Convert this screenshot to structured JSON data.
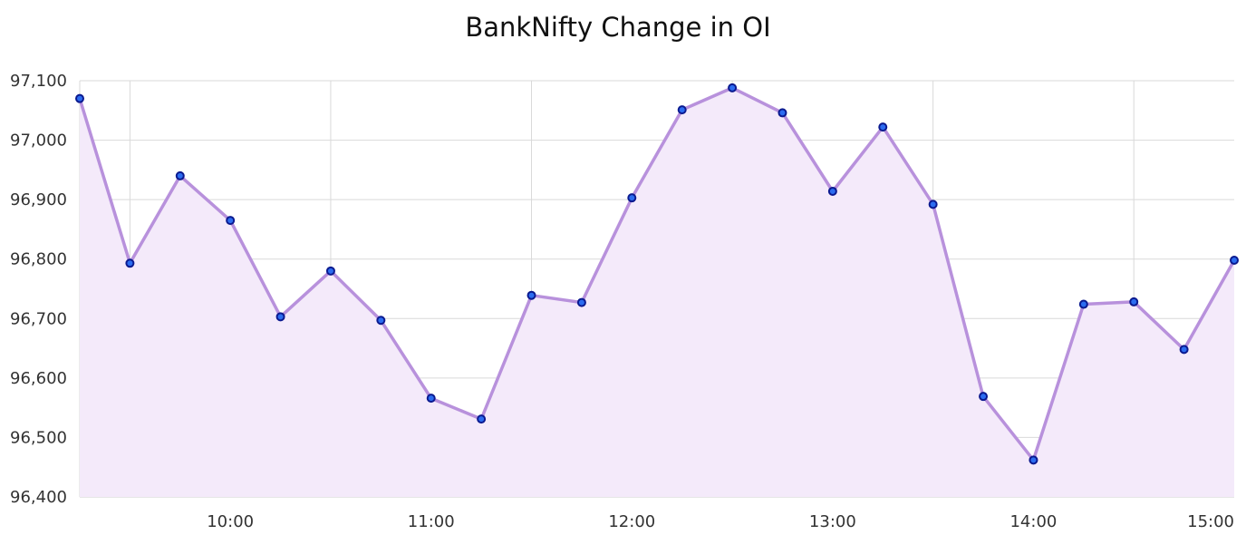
{
  "chart_data": {
    "type": "area",
    "title": "BankNifty Change in OI",
    "xlabel": "",
    "ylabel": "",
    "ylim": [
      96400,
      97100
    ],
    "xlim": [
      "09:15",
      "15:00"
    ],
    "yticks": [
      96400,
      96500,
      96600,
      96700,
      96800,
      96900,
      97000,
      97100
    ],
    "ytick_labels": [
      "96,400",
      "96,500",
      "96,600",
      "96,700",
      "96,800",
      "96,900",
      "97,000",
      "97,100"
    ],
    "xticks": [
      "10:00",
      "11:00",
      "12:00",
      "13:00",
      "14:00",
      "15:00"
    ],
    "grid": true,
    "legend": "none",
    "series": [
      {
        "x": [
          "09:15",
          "09:30",
          "09:45",
          "10:00",
          "10:15",
          "10:30",
          "10:45",
          "11:00",
          "11:15",
          "11:30",
          "11:45",
          "12:00",
          "12:15",
          "12:30",
          "12:45",
          "13:00",
          "13:15",
          "13:30",
          "13:45",
          "14:00",
          "14:15",
          "14:30",
          "14:45",
          "15:00"
        ],
        "values": [
          97070,
          96793,
          96940,
          96865,
          96703,
          96780,
          96697,
          96566,
          96531,
          96739,
          96727,
          96903,
          97051,
          97088,
          97046,
          96914,
          97022,
          96892,
          96569,
          96462,
          96724,
          96728,
          96648,
          96798
        ]
      }
    ],
    "colors": {
      "line": "#b891dc",
      "fill": "#f4eafa",
      "marker_fill": "#2c6cf0",
      "marker_stroke": "#0b1a8f",
      "grid": "#d9d9d9"
    }
  }
}
